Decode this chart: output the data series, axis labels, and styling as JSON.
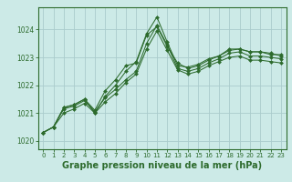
{
  "background_color": "#cceae7",
  "grid_color": "#aacccc",
  "line_color": "#2d6b2d",
  "marker_color": "#2d6b2d",
  "xlabel": "Graphe pression niveau de la mer (hPa)",
  "xlabel_fontsize": 7,
  "xtick_labels": [
    "0",
    "1",
    "2",
    "3",
    "4",
    "5",
    "6",
    "7",
    "8",
    "9",
    "10",
    "11",
    "12",
    "13",
    "14",
    "15",
    "16",
    "17",
    "18",
    "19",
    "20",
    "21",
    "22",
    "23"
  ],
  "yticks": [
    1020,
    1021,
    1022,
    1023,
    1024
  ],
  "ylim": [
    1019.7,
    1024.8
  ],
  "xlim": [
    -0.5,
    23.5
  ],
  "series": [
    [
      1020.3,
      1020.5,
      1021.2,
      1021.3,
      1021.5,
      1021.1,
      1021.8,
      1022.2,
      1022.7,
      1022.8,
      1023.8,
      1024.1,
      1023.4,
      1022.8,
      1022.6,
      1022.7,
      1022.9,
      1023.05,
      1023.3,
      1023.3,
      1023.2,
      1023.2,
      1023.1,
      1023.1
    ],
    [
      1020.3,
      1020.5,
      1021.2,
      1021.3,
      1021.5,
      1021.0,
      1021.6,
      1022.0,
      1022.5,
      1022.85,
      1023.85,
      1024.45,
      1023.55,
      1022.7,
      1022.65,
      1022.75,
      1022.95,
      1023.05,
      1023.25,
      1023.3,
      1023.2,
      1023.2,
      1023.15,
      1023.05
    ],
    [
      1020.3,
      1020.5,
      1021.15,
      1021.25,
      1021.45,
      1021.05,
      1021.55,
      1021.85,
      1022.2,
      1022.5,
      1023.5,
      1024.15,
      1023.45,
      1022.6,
      1022.5,
      1022.6,
      1022.8,
      1022.95,
      1023.15,
      1023.2,
      1023.05,
      1023.05,
      1023.0,
      1022.95
    ],
    [
      1020.3,
      1020.5,
      1021.0,
      1021.15,
      1021.35,
      1021.0,
      1021.4,
      1021.7,
      1022.1,
      1022.4,
      1023.3,
      1023.95,
      1023.25,
      1022.55,
      1022.4,
      1022.5,
      1022.7,
      1022.85,
      1023.0,
      1023.05,
      1022.9,
      1022.9,
      1022.85,
      1022.8
    ]
  ]
}
